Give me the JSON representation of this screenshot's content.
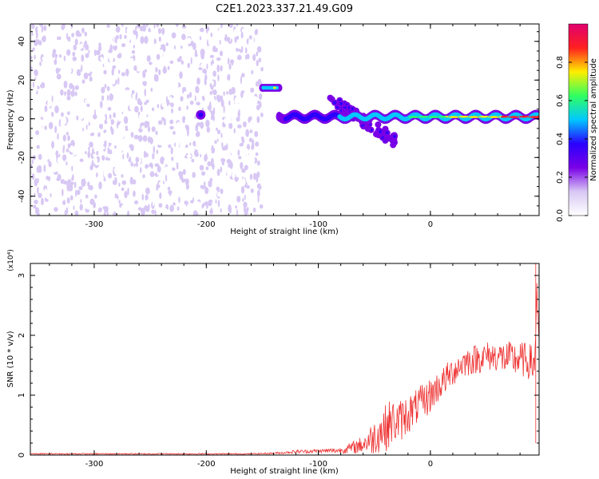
{
  "title": "C2E1.2023.337.21.49.G09",
  "colors": {
    "snr_line": "#ee3333",
    "frame": "#000000",
    "colormap": [
      "#ffffff",
      "#d8c8f4",
      "#7a00e6",
      "#2a00ff",
      "#00c8ff",
      "#30ff60",
      "#ffee00",
      "#ff2020",
      "#e0006e"
    ]
  },
  "chart_data": [
    {
      "type": "heatmap",
      "title": "C2E1.2023.337.21.49.G09",
      "xlabel": "Height of straight line (km)",
      "ylabel": "Frequency (Hz)",
      "xlim": [
        -357,
        97
      ],
      "ylim": [
        -50,
        49
      ],
      "xticks": [
        -300,
        -200,
        -100,
        0
      ],
      "xtick_labels": [
        "-300",
        "-200",
        "-100",
        "0"
      ],
      "yticks": [
        -40,
        -20,
        0,
        20,
        40
      ],
      "ytick_labels": [
        "-40",
        "-20",
        "0",
        "20",
        "40"
      ],
      "colorbar": {
        "label": "Normalized spectral amplitude",
        "range": [
          0,
          1
        ],
        "ticks": [
          0.0,
          0.2,
          0.4,
          0.6,
          0.8
        ],
        "tick_labels": [
          "0.0",
          "0.2",
          "0.4",
          "0.6",
          "0.8"
        ]
      },
      "features": [
        {
          "name": "noise",
          "x_range": [
            -357,
            -150
          ],
          "freq_range": [
            -50,
            49
          ],
          "amplitude": 0.12
        },
        {
          "name": "blob",
          "x": -205,
          "freq": 2,
          "amplitude": 0.3
        },
        {
          "name": "upper-band",
          "x_range": [
            -150,
            -135
          ],
          "freq": 16,
          "amplitude": 0.55
        },
        {
          "name": "main-track",
          "x_range": [
            -135,
            97
          ],
          "freq": 1,
          "amplitude_range": [
            0.3,
            0.9
          ]
        },
        {
          "name": "dispersion-arm",
          "x_range": [
            -90,
            -30
          ],
          "freq_range": [
            10,
            -12
          ],
          "amplitude": 0.4
        }
      ],
      "grid": false
    },
    {
      "type": "line",
      "xlabel": "Height of straight line (km)",
      "ylabel": "SNR (10 * v/v)",
      "y_multiplier": "(x10⁴)",
      "xlim": [
        -357,
        97
      ],
      "ylim": [
        0,
        3.2
      ],
      "xticks": [
        -300,
        -200,
        -100,
        0
      ],
      "xtick_labels": [
        "-300",
        "-200",
        "-100",
        "0"
      ],
      "yticks": [
        0,
        1,
        2,
        3
      ],
      "ytick_labels": [
        "0",
        "1",
        "2",
        "3"
      ],
      "series": [
        {
          "x": [
            -357,
            -300,
            -250,
            -200,
            -160,
            -140,
            -130,
            -120,
            -110,
            -100,
            -90,
            -80,
            -70,
            -60,
            -50,
            -45,
            -40,
            -35,
            -30,
            -25,
            -20,
            -15,
            -10,
            -5,
            0,
            10,
            20,
            30,
            40,
            50,
            60,
            70,
            80,
            90,
            93,
            95,
            97
          ],
          "mean": [
            0.02,
            0.02,
            0.02,
            0.02,
            0.02,
            0.03,
            0.04,
            0.06,
            0.06,
            0.07,
            0.07,
            0.08,
            0.12,
            0.18,
            0.3,
            0.4,
            0.45,
            0.55,
            0.55,
            0.6,
            0.7,
            0.75,
            0.85,
            0.9,
            1.0,
            1.2,
            1.4,
            1.55,
            1.6,
            1.65,
            1.65,
            1.6,
            1.6,
            1.55,
            1.5,
            2.8,
            1.9
          ],
          "spread": [
            0.01,
            0.01,
            0.01,
            0.01,
            0.01,
            0.015,
            0.02,
            0.03,
            0.03,
            0.03,
            0.04,
            0.05,
            0.1,
            0.15,
            0.3,
            0.35,
            0.4,
            0.4,
            0.35,
            0.35,
            0.35,
            0.3,
            0.3,
            0.3,
            0.3,
            0.25,
            0.25,
            0.25,
            0.25,
            0.25,
            0.25,
            0.3,
            0.3,
            0.3,
            0.3,
            0.3,
            0.3
          ]
        }
      ],
      "grid": false
    }
  ]
}
